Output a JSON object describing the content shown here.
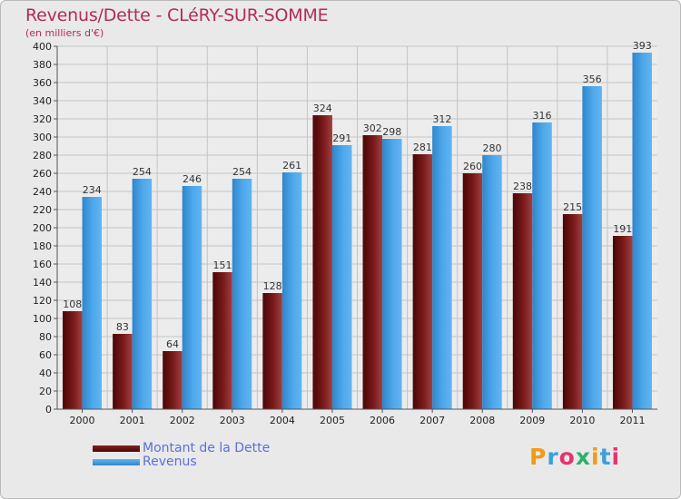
{
  "chart_data": {
    "type": "bar",
    "title": "Revenus/Dette - CLéRY-SUR-SOMME",
    "subtitle": "(en milliers d'€)",
    "categories": [
      "2000",
      "2001",
      "2002",
      "2003",
      "2004",
      "2005",
      "2006",
      "2007",
      "2008",
      "2009",
      "2010",
      "2011"
    ],
    "series": [
      {
        "name": "Montant de la Dette",
        "color": "#7a1a1a",
        "values": [
          108,
          83,
          64,
          151,
          128,
          324,
          302,
          281,
          260,
          238,
          215,
          191
        ]
      },
      {
        "name": "Revenus",
        "color": "#3f9be3",
        "values": [
          234,
          254,
          246,
          254,
          261,
          291,
          298,
          312,
          280,
          316,
          356,
          393
        ]
      }
    ],
    "ylim": [
      0,
      400
    ],
    "ytick_step": 20,
    "grid": true,
    "xlabel": "",
    "ylabel": "",
    "legend_position": "bottom-left"
  },
  "logo": {
    "text": "Proxiti",
    "colors": [
      "#f39a16",
      "#3aa0dc",
      "#e8336e",
      "#2db26a",
      "#f39a16",
      "#3aa0dc",
      "#e8336e"
    ]
  }
}
